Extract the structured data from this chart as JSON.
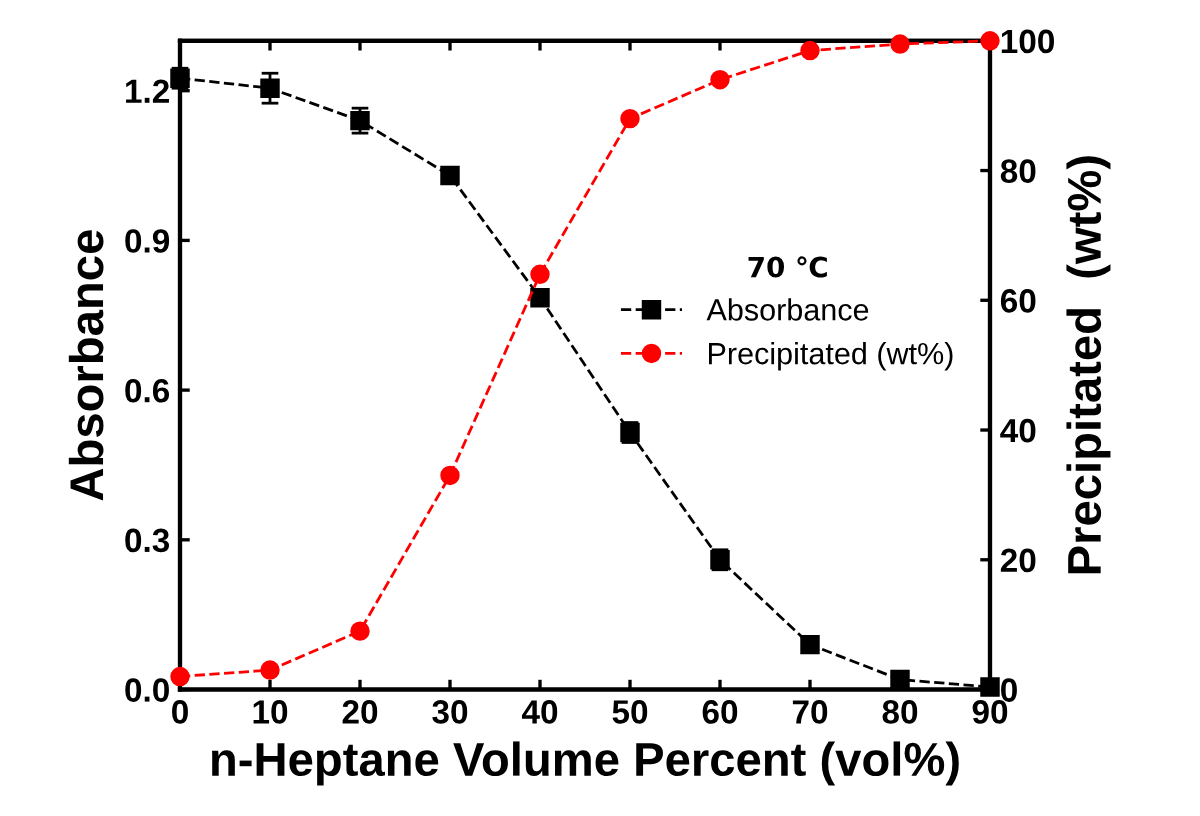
{
  "chart_data": {
    "type": "line",
    "xlabel": "n-Heptane Volume Percent (vol%)",
    "ylabel": "Absorbance",
    "y2label": "Precipitated  (wt%)",
    "legend_title": "70 ℃",
    "legend": "right",
    "line_style": "dashed",
    "grid": false,
    "x": [
      0,
      10,
      20,
      30,
      40,
      50,
      60,
      70,
      80,
      90
    ],
    "series": [
      {
        "name": "Absorbance",
        "color": "#000000",
        "marker": "square",
        "values": [
          1.225,
          1.205,
          1.14,
          1.03,
          0.785,
          0.515,
          0.26,
          0.09,
          0.02,
          0.005
        ],
        "errors": [
          0.02,
          0.03,
          0.025,
          0.015,
          0.015,
          0.02,
          0.02,
          0.01,
          0.01,
          0.01
        ]
      },
      {
        "name": "Precipitated (wt%)",
        "color": "#ff0000",
        "marker": "circle",
        "axis": "y2",
        "values": [
          2,
          3,
          9,
          33,
          64,
          88,
          94,
          98.5,
          99.5,
          100
        ]
      }
    ],
    "xlim": [
      0,
      90
    ],
    "xticks": [
      0,
      10,
      20,
      30,
      40,
      50,
      60,
      70,
      80,
      90
    ],
    "ylim": [
      0,
      1.3
    ],
    "yticks": [
      {
        "value": 0,
        "label": "0.0"
      },
      0.3,
      0.6,
      0.9,
      1.2
    ],
    "y2lim": [
      0,
      100
    ],
    "y2ticks": [
      0,
      20,
      40,
      60,
      80,
      100
    ]
  }
}
